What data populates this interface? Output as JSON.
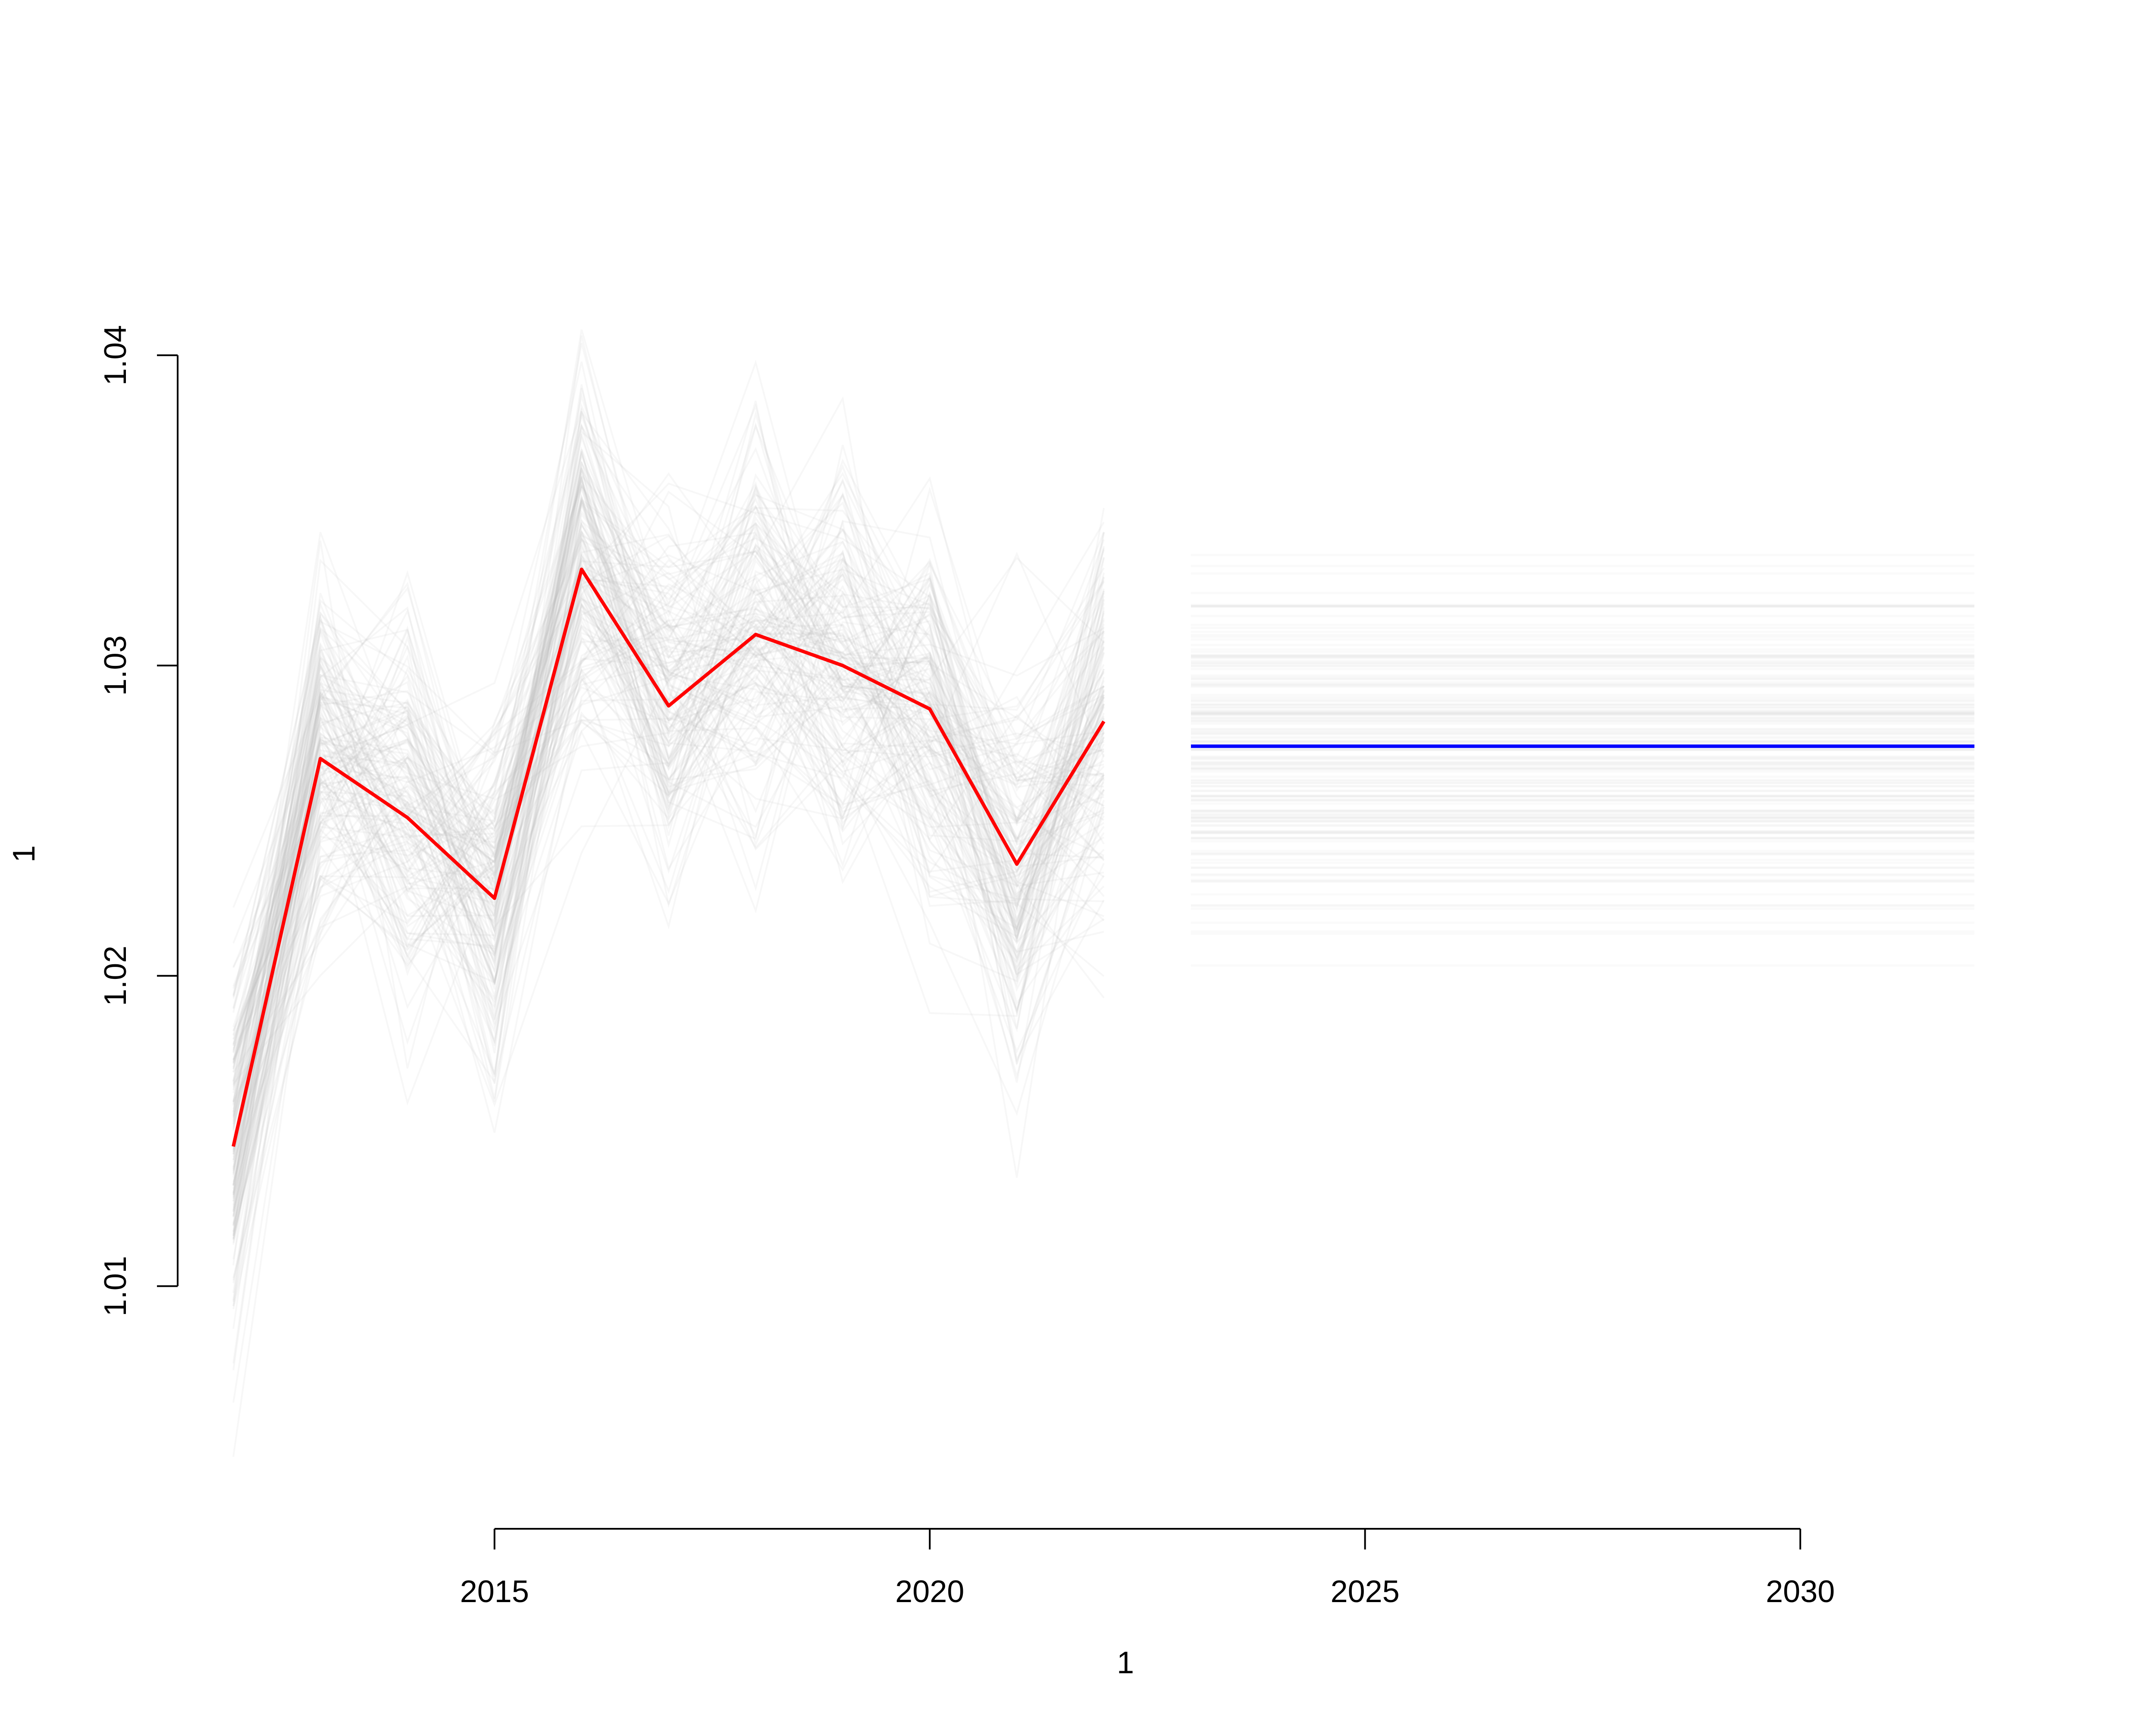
{
  "chart_data": {
    "type": "line",
    "title": "",
    "xlabel": "1",
    "ylabel": "1",
    "xlim": [
      2011.4,
      2032.6
    ],
    "ylim": [
      1.0035,
      1.0445
    ],
    "x_ticks": [
      2015,
      2020,
      2025,
      2030
    ],
    "x_tick_labels": [
      "2015",
      "2020",
      "2025",
      "2030"
    ],
    "y_ticks": [
      1.01,
      1.02,
      1.03,
      1.04
    ],
    "y_tick_labels": [
      "1.01",
      "1.02",
      "1.03",
      "1.04"
    ],
    "grid": false,
    "legend": "none",
    "series": [
      {
        "role": "observed",
        "color": "#FF0000",
        "x": [
          2012,
          2013,
          2014,
          2015,
          2016,
          2017,
          2018,
          2019,
          2020,
          2021,
          2022
        ],
        "values": [
          1.0145,
          1.027,
          1.0251,
          1.0225,
          1.0331,
          1.0287,
          1.031,
          1.03,
          1.0286,
          1.0236,
          1.0282
        ]
      },
      {
        "role": "forecast",
        "color": "#0000FF",
        "x": [
          2023,
          2032
        ],
        "values": [
          1.0274,
          1.0274
        ]
      }
    ],
    "simulated_paths": {
      "color": "#BEBEBE",
      "x": [
        2012,
        2013,
        2014,
        2015,
        2016,
        2017,
        2018,
        2019,
        2020,
        2021,
        2022
      ],
      "envelope_min": [
        1.0045,
        1.017,
        1.015,
        1.0125,
        1.023,
        1.0188,
        1.021,
        1.02,
        1.0188,
        1.0135,
        1.0182
      ],
      "envelope_max": [
        1.0247,
        1.037,
        1.0352,
        1.0326,
        1.0432,
        1.0388,
        1.0411,
        1.0401,
        1.0387,
        1.0336,
        1.0383
      ]
    },
    "forecast_band": {
      "color": "#BEBEBE",
      "x": [
        2023,
        2032
      ],
      "min": 1.0193,
      "max": 1.0355
    }
  }
}
